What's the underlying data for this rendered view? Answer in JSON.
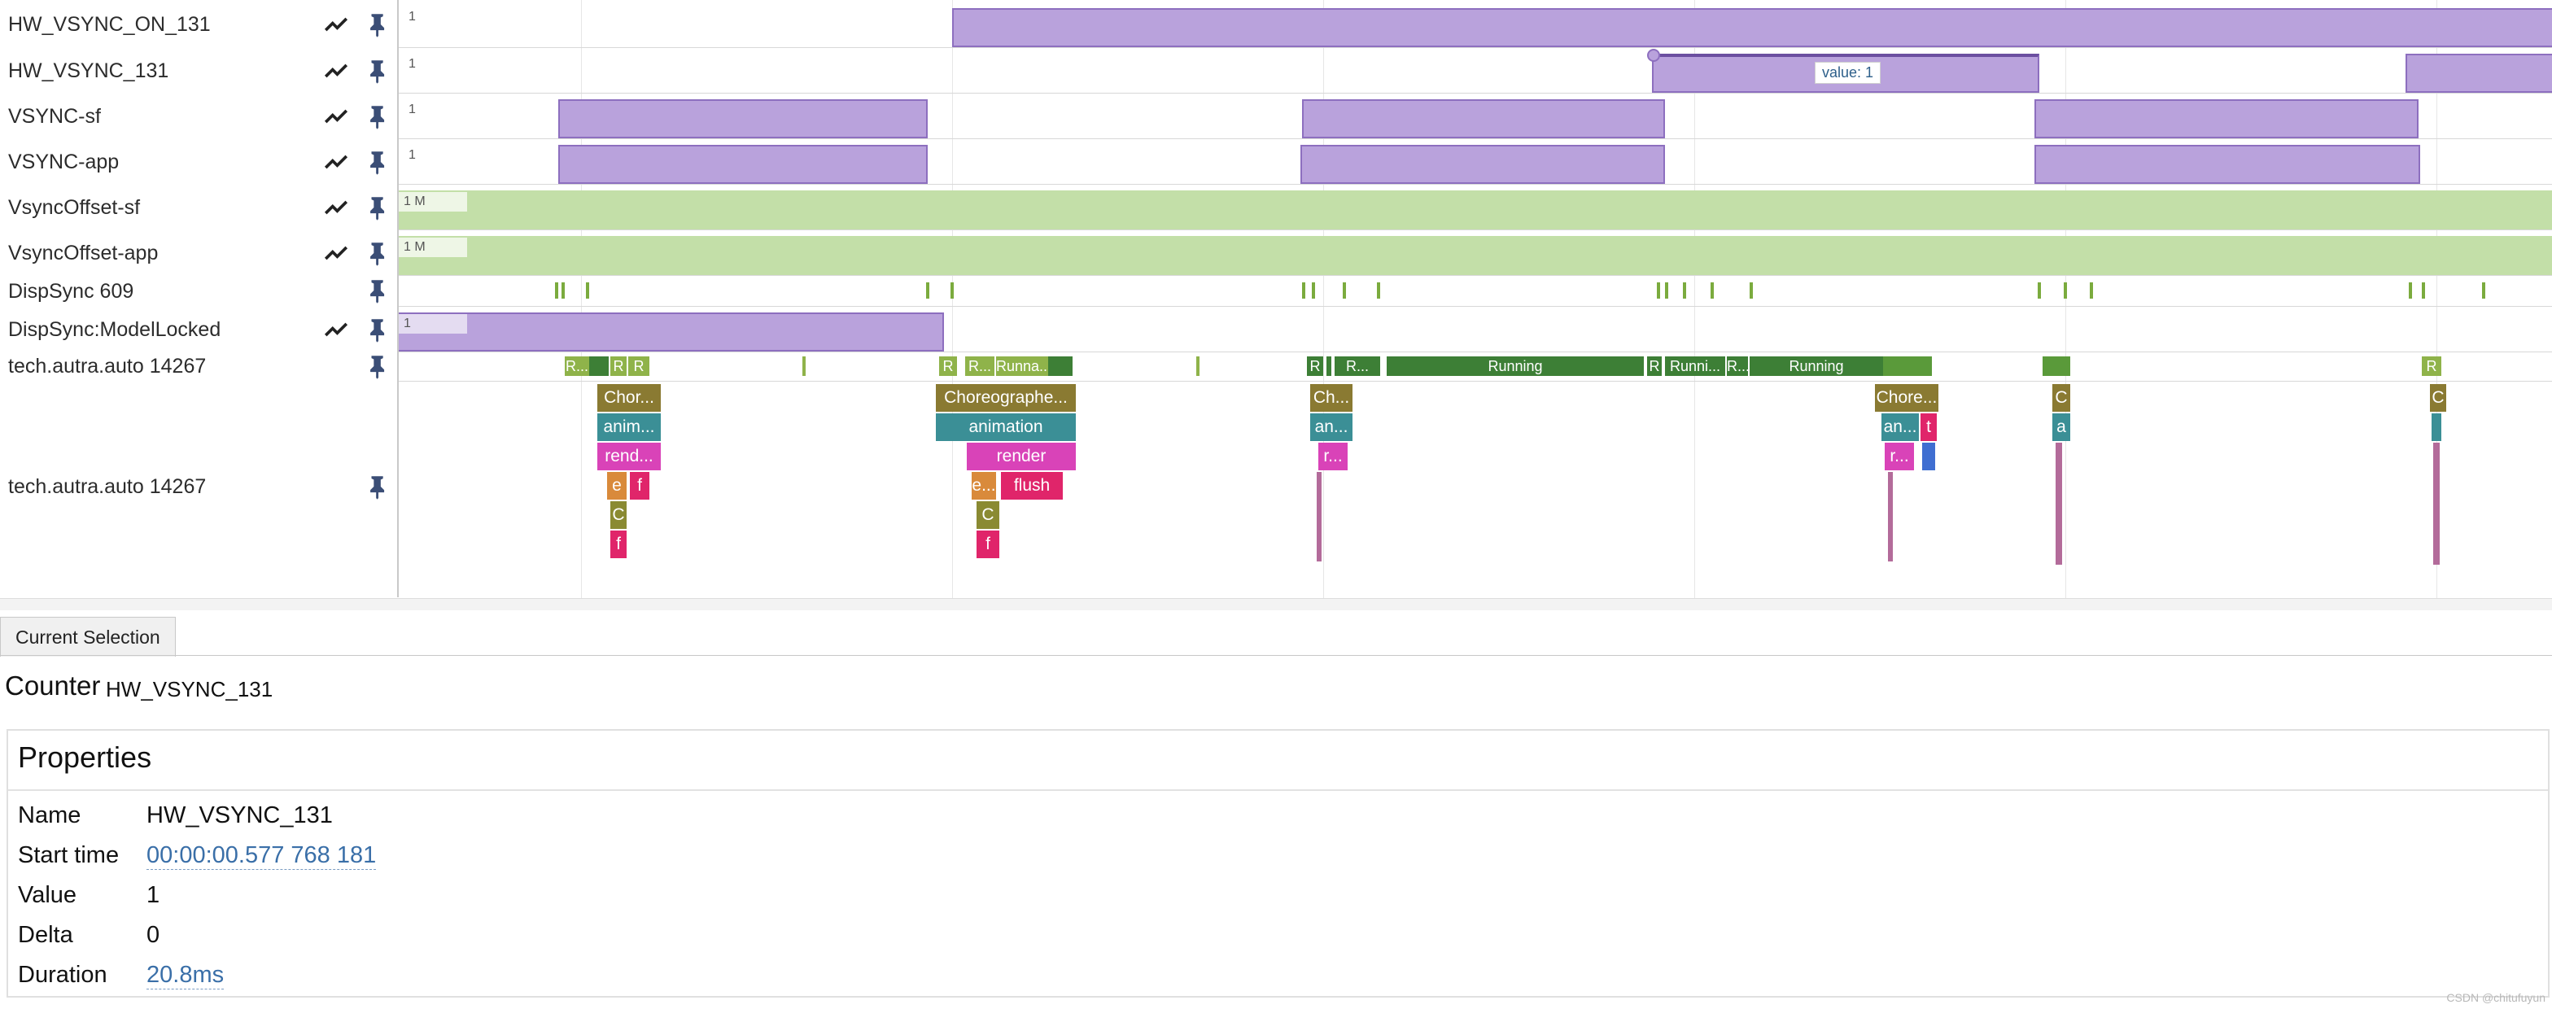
{
  "tracks": [
    {
      "name": "HW_VSYNC_ON_131",
      "value_label": "1"
    },
    {
      "name": "HW_VSYNC_131",
      "value_label": "1",
      "tooltip": "value: 1"
    },
    {
      "name": "VSYNC-sf",
      "value_label": "1"
    },
    {
      "name": "VSYNC-app",
      "value_label": "1"
    },
    {
      "name": "VsyncOffset-sf",
      "value_label": "1 M"
    },
    {
      "name": "VsyncOffset-app",
      "value_label": "1 M"
    },
    {
      "name": "DispSync 609"
    },
    {
      "name": "DispSync:ModelLocked",
      "value_label": "1"
    },
    {
      "name": "tech.autra.auto 14267"
    },
    {
      "name": "tech.autra.auto 14267"
    }
  ],
  "thread_states": [
    "R...",
    "R",
    "R",
    "R",
    "R...",
    "Runna...",
    "R",
    "R...",
    "Running",
    "R",
    "Runni...",
    "R...",
    "Running",
    "R"
  ],
  "slices": {
    "s1": [
      "Chor...",
      "anim...",
      "rend...",
      "e",
      "f",
      "C",
      "f"
    ],
    "s2": [
      "Choreographe...",
      "animation",
      "render",
      "e...",
      "flush",
      "C",
      "f"
    ],
    "s3": [
      "Ch...",
      "an...",
      "r..."
    ],
    "s4": [
      "Chore...",
      "an...",
      "t",
      "r..."
    ],
    "s5": [
      "C",
      "a"
    ],
    "s6": [
      "C"
    ]
  },
  "panel": {
    "tab_label": "Current Selection",
    "kind": "Counter",
    "counter_name": "HW_VSYNC_131",
    "properties_title": "Properties",
    "rows": [
      {
        "label": "Name",
        "value": "HW_VSYNC_131"
      },
      {
        "label": "Start time",
        "value": "00:00:00.577 768 181"
      },
      {
        "label": "Value",
        "value": "1"
      },
      {
        "label": "Delta",
        "value": "0"
      },
      {
        "label": "Duration",
        "value": "20.8ms"
      }
    ]
  },
  "watermark": "CSDN @chitufuyun",
  "colors": {
    "counter_fill": "#b9a2dc",
    "offset_fill": "#c3dfa8",
    "running": "#3d7f36",
    "runnable": "#8fb34a"
  },
  "icons": {
    "chart": "line-chart-icon",
    "pin": "pin-icon"
  }
}
